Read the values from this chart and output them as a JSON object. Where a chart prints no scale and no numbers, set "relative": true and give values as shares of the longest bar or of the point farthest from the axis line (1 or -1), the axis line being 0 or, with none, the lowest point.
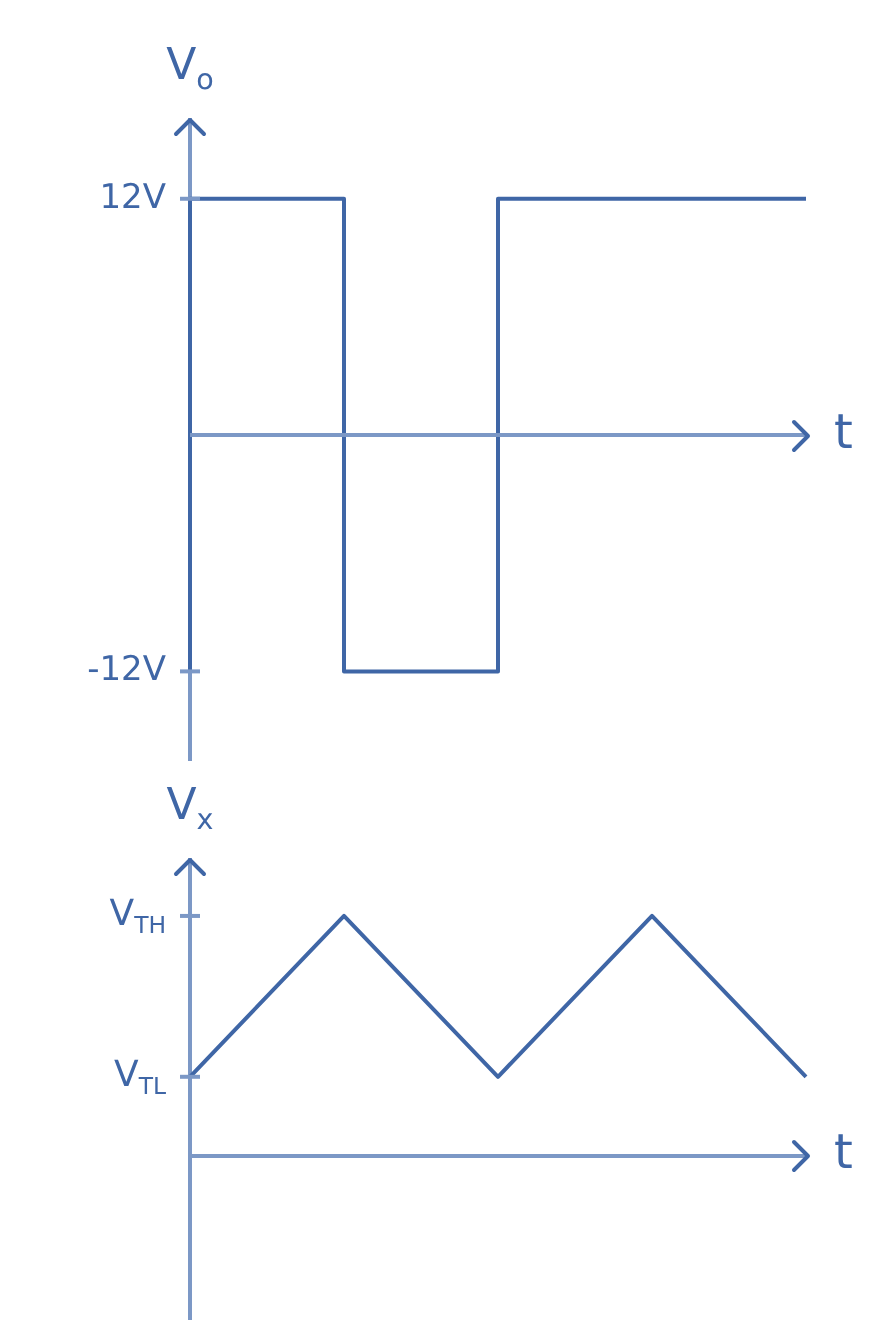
{
  "chart_data": [
    {
      "type": "step",
      "xlabel": "t",
      "ylabel": "V$_{o}$",
      "categories": [
        null,
        null,
        null,
        null,
        null
      ],
      "series": [
        {
          "color": "#3f66a6",
          "values": [
            -12,
            12,
            -12,
            12,
            12
          ]
        }
      ],
      "ylim": [
        -16.5,
        16
      ],
      "yticks": [
        {
          "value": 12,
          "label": "12V"
        },
        {
          "value": -12,
          "label": "-12V"
        }
      ],
      "ref_lines": [
        {
          "axis": "y",
          "value": 0,
          "color": "#7c98c6"
        }
      ]
    },
    {
      "type": "line",
      "relative": true,
      "xlabel": "t",
      "ylabel": "V$_{x}$",
      "categories": [
        null,
        null,
        null,
        null,
        null
      ],
      "series": [
        {
          "color": "#3f66a6",
          "values": [
            0.33,
            1,
            0.33,
            1,
            0.33
          ]
        }
      ],
      "annotations": [
        "V$_{TH}$",
        "V$_{TL}$"
      ]
    }
  ]
}
